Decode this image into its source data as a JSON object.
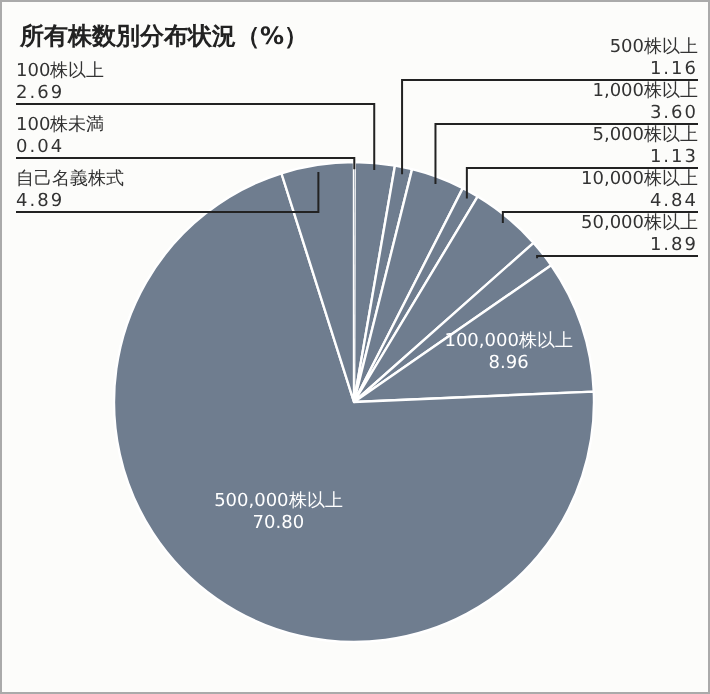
{
  "chart_data": {
    "type": "pie",
    "title": "所有株数別分布状況（%）",
    "categories": [
      "100株未満",
      "100株以上",
      "500株以上",
      "1,000株以上",
      "5,000株以上",
      "10,000株以上",
      "50,000株以上",
      "100,000株以上",
      "500,000株以上",
      "自己名義株式"
    ],
    "values": [
      0.04,
      2.69,
      1.16,
      3.6,
      1.13,
      4.84,
      1.89,
      8.96,
      70.8,
      4.89
    ],
    "value_labels": [
      "0.04",
      "2.69",
      "1.16",
      "3.60",
      "1.13",
      "4.84",
      "1.89",
      "8.96",
      "70.80",
      "4.89"
    ],
    "colors": [
      "#6f7d8f",
      "#6f7d8f",
      "#6f7d8f",
      "#6f7d8f",
      "#6f7d8f",
      "#6f7d8f",
      "#6f7d8f",
      "#6f7d8f",
      "#6f7d8f",
      "#6f7d8f"
    ]
  }
}
